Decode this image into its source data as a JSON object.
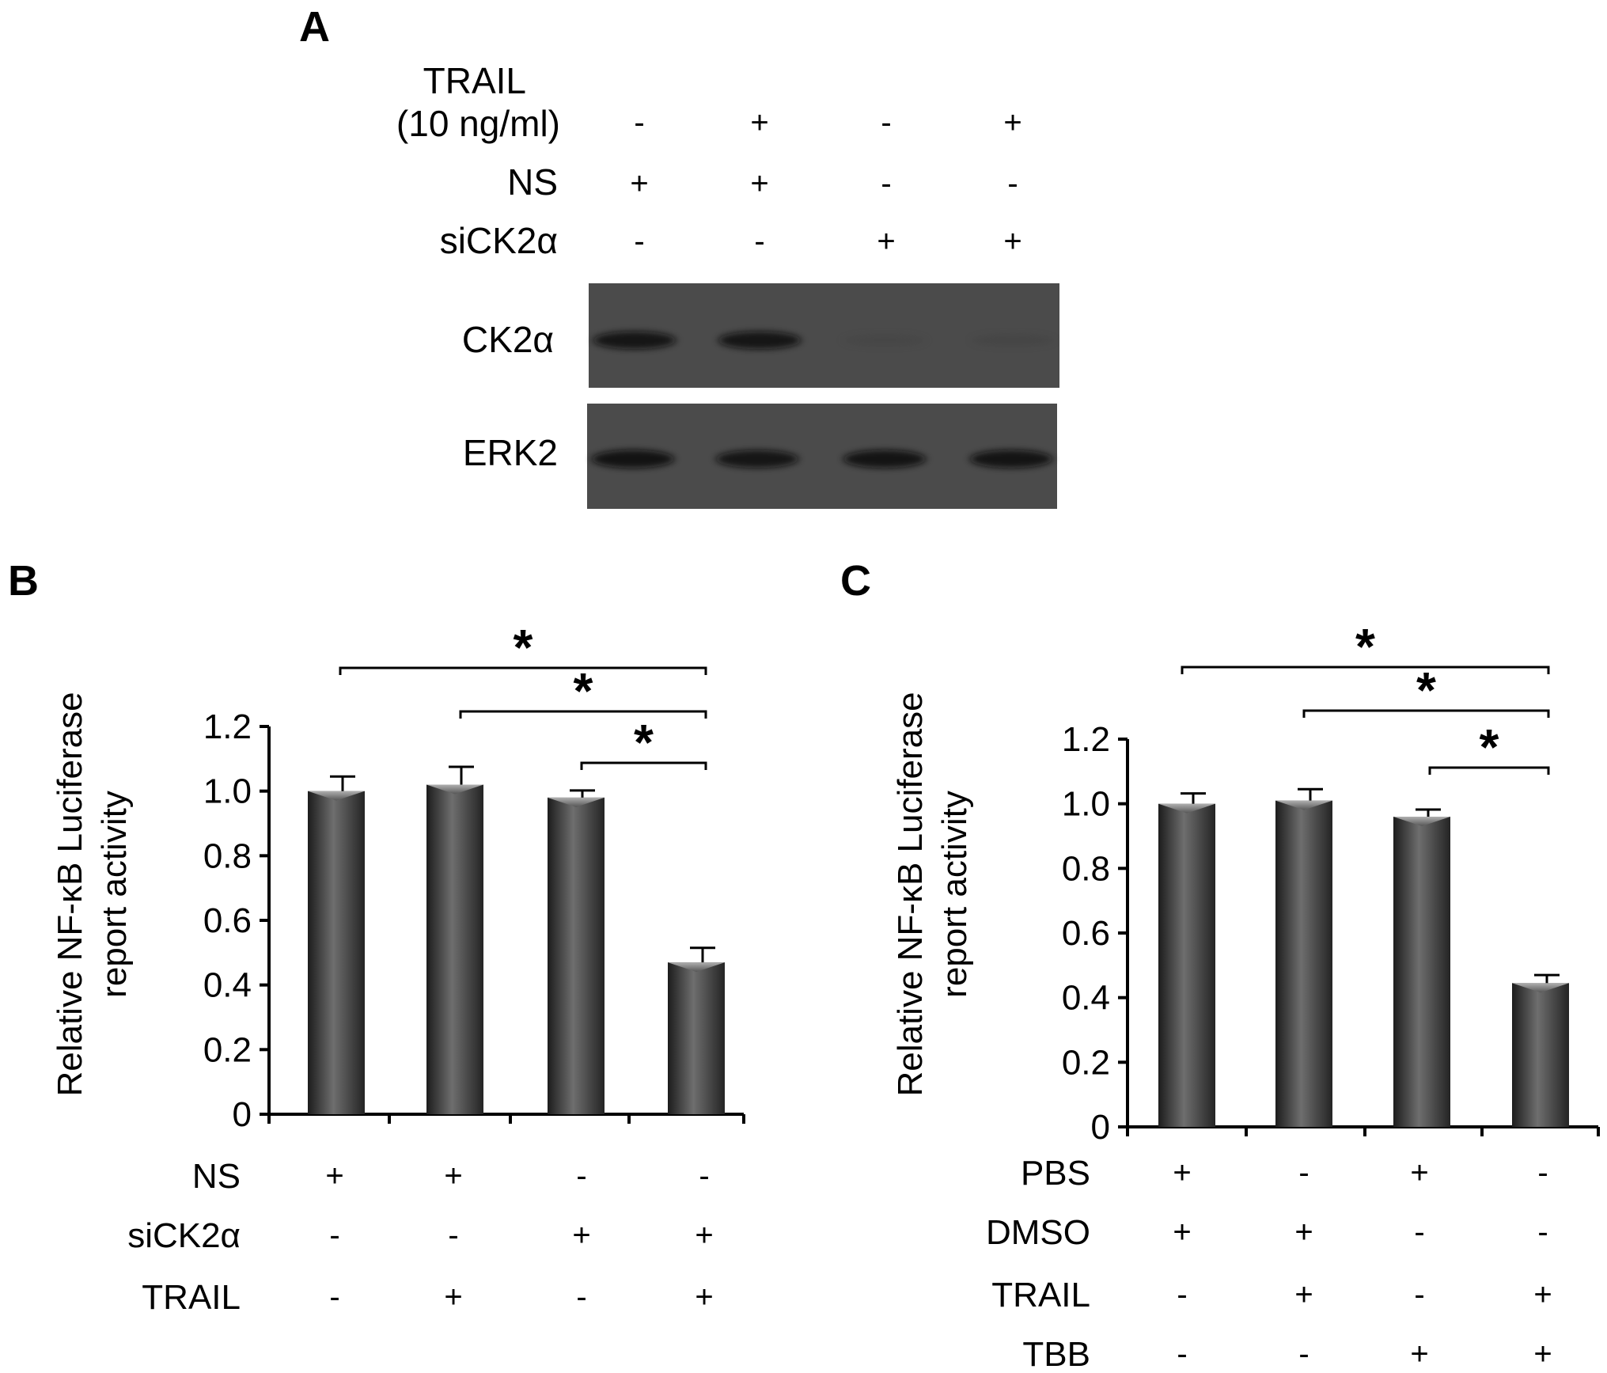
{
  "panel_a": {
    "letter": "A",
    "row_labels": [
      "TRAIL",
      "(10 ng/ml)",
      "NS",
      "siCK2α"
    ],
    "condition_signs": [
      [
        "-",
        "+",
        "-",
        "+"
      ],
      [
        "+",
        "+",
        "-",
        "-"
      ],
      [
        "-",
        "-",
        "+",
        "+"
      ]
    ],
    "blots": [
      {
        "label": "CK2α",
        "band_intensity": [
          0.85,
          0.85,
          0.15,
          0.18
        ]
      },
      {
        "label": "ERK2",
        "band_intensity": [
          0.9,
          0.85,
          0.88,
          0.88
        ]
      }
    ]
  },
  "chart_data": [
    {
      "type": "bar",
      "panel": "B",
      "ylabel": [
        "Relative NF-κB Luciferase",
        "report activity"
      ],
      "ylim": [
        0,
        1.2
      ],
      "yticks": [
        "0",
        "0.2",
        "0.4",
        "0.6",
        "0.8",
        "1.0",
        "1.2"
      ],
      "values": [
        1.0,
        1.02,
        0.98,
        0.47
      ],
      "errors": [
        0.045,
        0.055,
        0.022,
        0.045
      ],
      "condition_rows": [
        {
          "label": "NS",
          "signs": [
            "+",
            "+",
            "-",
            "-"
          ]
        },
        {
          "label": "siCK2α",
          "signs": [
            "-",
            "-",
            "+",
            "+"
          ]
        },
        {
          "label": "TRAIL",
          "signs": [
            "-",
            "+",
            "-",
            "+"
          ]
        }
      ],
      "significance": [
        {
          "from": 0,
          "to": 3,
          "label": "*"
        },
        {
          "from": 1,
          "to": 3,
          "label": "*"
        },
        {
          "from": 2,
          "to": 3,
          "label": "*"
        }
      ]
    },
    {
      "type": "bar",
      "panel": "C",
      "ylabel": [
        "Relative NF-κB Luciferase",
        "report activity"
      ],
      "ylim": [
        0,
        1.2
      ],
      "yticks": [
        "0",
        "0.2",
        "0.4",
        "0.6",
        "0.8",
        "1.0",
        "1.2"
      ],
      "values": [
        1.0,
        1.01,
        0.96,
        0.445
      ],
      "errors": [
        0.032,
        0.035,
        0.022,
        0.025
      ],
      "condition_rows": [
        {
          "label": "PBS",
          "signs": [
            "+",
            "-",
            "+",
            "-"
          ]
        },
        {
          "label": "DMSO",
          "signs": [
            "+",
            "+",
            "-",
            "-"
          ]
        },
        {
          "label": "TRAIL",
          "signs": [
            "-",
            "+",
            "-",
            "+"
          ]
        },
        {
          "label": "TBB",
          "signs": [
            "-",
            "-",
            "+",
            "+"
          ]
        }
      ],
      "significance": [
        {
          "from": 0,
          "to": 3,
          "label": "*"
        },
        {
          "from": 1,
          "to": 3,
          "label": "*"
        },
        {
          "from": 2,
          "to": 3,
          "label": "*"
        }
      ]
    }
  ]
}
